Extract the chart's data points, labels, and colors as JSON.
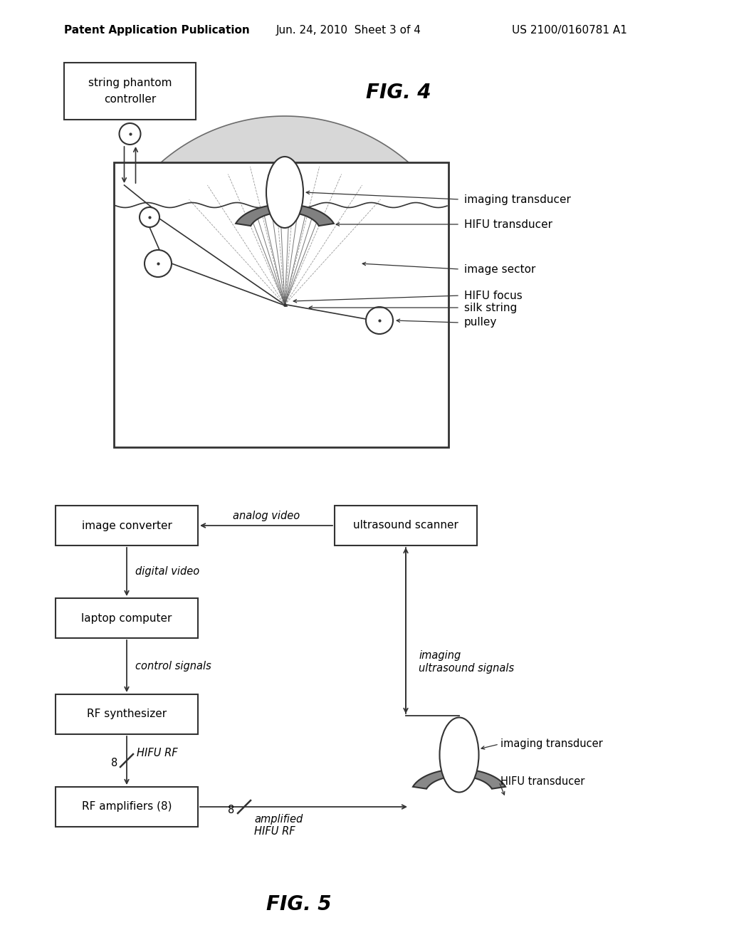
{
  "bg_color": "#ffffff",
  "header_left": "Patent Application Publication",
  "header_mid": "Jun. 24, 2010  Sheet 3 of 4",
  "header_right": "US 2100/0160781 A1",
  "fig4_title": "FIG. 4",
  "fig5_title": "FIG. 5"
}
